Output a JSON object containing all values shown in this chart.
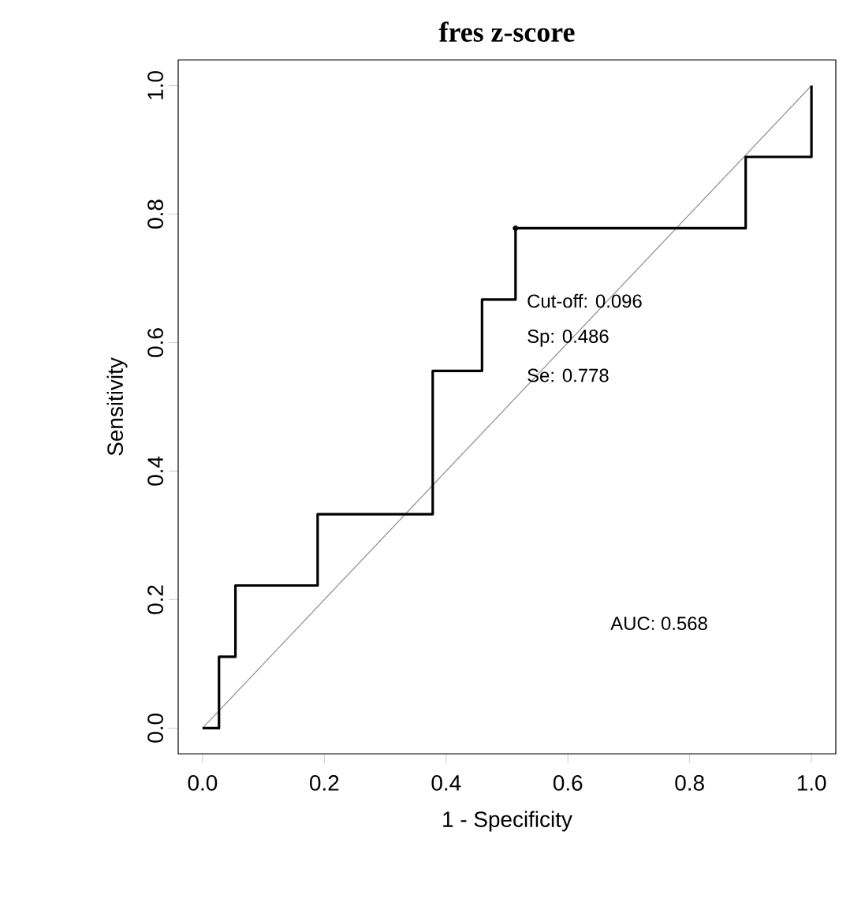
{
  "chart_data": {
    "type": "step",
    "title": "fres z-score",
    "xlabel": "1 - Specificity",
    "ylabel": "Sensitivity",
    "xlim": [
      -0.04,
      1.04
    ],
    "ylim": [
      -0.04,
      1.04
    ],
    "xticks": [
      {
        "value": 0,
        "label": "0.0"
      },
      0.2,
      0.4,
      0.6,
      0.8,
      {
        "value": 1,
        "label": "1.0"
      }
    ],
    "yticks": [
      {
        "value": 0,
        "label": "0.0"
      },
      0.2,
      0.4,
      0.6,
      0.8,
      {
        "value": 1,
        "label": "1.0"
      }
    ],
    "series": [
      {
        "type": "line",
        "color": "#8c8c8c",
        "x": [
          0,
          1
        ],
        "values": [
          0,
          1
        ]
      },
      {
        "color": "#000000",
        "x": [
          0,
          0.027,
          0.054,
          0.189,
          0.378,
          0.459,
          0.514,
          0.892,
          1.0
        ],
        "values": [
          0,
          0.111,
          0.222,
          0.333,
          0.556,
          0.667,
          0.778,
          0.889,
          1.0
        ]
      },
      {
        "type": "scatter",
        "color": "#000000",
        "marker": "circle",
        "x": [
          0.514
        ],
        "values": [
          0.778
        ]
      }
    ],
    "annotations": [
      "Cut-off: 0.096",
      "Sp: 0.486",
      "Se: 0.778",
      "AUC: 0.568"
    ],
    "grid": false
  }
}
